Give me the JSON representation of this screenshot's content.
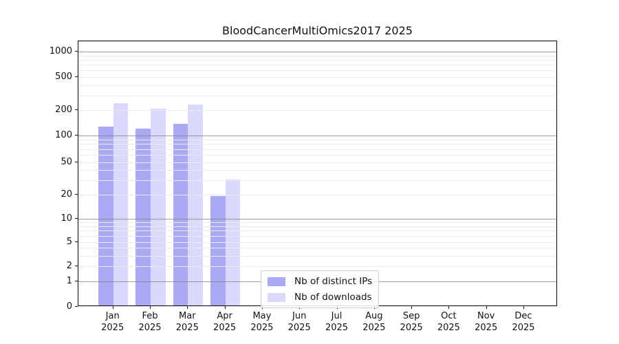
{
  "chart_data": {
    "type": "bar",
    "title": "BloodCancerMultiOmics2017 2025",
    "scale": "symlog",
    "grid": "on",
    "legend_position": "lower-center",
    "categories": [
      "Jan",
      "Feb",
      "Mar",
      "Apr",
      "May",
      "Jun",
      "Jul",
      "Aug",
      "Sep",
      "Oct",
      "Nov",
      "Dec"
    ],
    "category_year": "2025",
    "series": [
      {
        "name": "Nb of distinct IPs",
        "color": "#aaaaf4",
        "values": [
          126,
          119,
          136,
          19,
          0,
          0,
          0,
          0,
          0,
          0,
          0,
          0
        ]
      },
      {
        "name": "Nb of downloads",
        "color": "#d9d9fb",
        "values": [
          238,
          204,
          229,
          30,
          0,
          0,
          0,
          0,
          0,
          0,
          0,
          0
        ]
      }
    ],
    "yticks": [
      0,
      1,
      2,
      5,
      10,
      20,
      50,
      100,
      200,
      500,
      1000
    ],
    "ylim_top_value": 1400,
    "axis_color": "#000000",
    "major_grid_color": "#7d7d7d",
    "minor_grid_color": "#ebebeb",
    "major_grid_values": [
      1,
      10,
      100,
      1000
    ],
    "minor_grid_values": [
      2,
      3,
      4,
      5,
      6,
      7,
      8,
      9,
      20,
      30,
      40,
      50,
      60,
      70,
      80,
      90,
      200,
      300,
      400,
      500,
      600,
      700,
      800,
      900
    ]
  }
}
